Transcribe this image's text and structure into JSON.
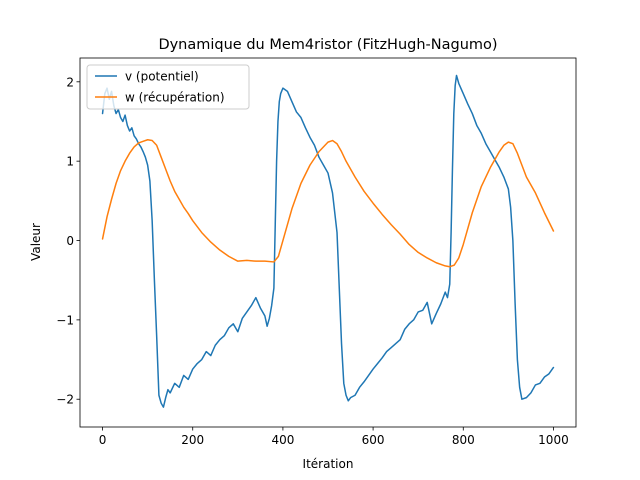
{
  "chart_data": {
    "type": "line",
    "title": "Dynamique du Mem4ristor (FitzHugh-Nagumo)",
    "xlabel": "Itération",
    "ylabel": "Valeur",
    "xlim": [
      -50,
      1050
    ],
    "ylim": [
      -2.35,
      2.3
    ],
    "x_ticks": [
      0,
      200,
      400,
      600,
      800,
      1000
    ],
    "y_ticks": [
      -2,
      -1,
      0,
      1,
      2
    ],
    "x_tick_labels": [
      "0",
      "200",
      "400",
      "600",
      "800",
      "1000"
    ],
    "y_tick_labels": [
      "−2",
      "−1",
      "0",
      "1",
      "2"
    ],
    "grid": false,
    "legend_position": "upper-left",
    "series": [
      {
        "name": "v (potentiel)",
        "color": "#1f77b4",
        "x": [
          0,
          5,
          10,
          15,
          20,
          25,
          30,
          35,
          40,
          45,
          50,
          55,
          60,
          65,
          70,
          75,
          80,
          85,
          90,
          95,
          100,
          105,
          110,
          115,
          120,
          125,
          130,
          135,
          140,
          145,
          150,
          160,
          170,
          180,
          190,
          200,
          210,
          220,
          230,
          240,
          250,
          260,
          270,
          280,
          290,
          300,
          310,
          320,
          330,
          340,
          350,
          360,
          365,
          370,
          375,
          380,
          383,
          386,
          389,
          392,
          395,
          400,
          410,
          420,
          430,
          440,
          450,
          460,
          470,
          480,
          490,
          500,
          510,
          520,
          525,
          530,
          535,
          540,
          545,
          550,
          560,
          570,
          580,
          590,
          600,
          610,
          620,
          630,
          640,
          650,
          660,
          670,
          680,
          690,
          700,
          710,
          720,
          730,
          740,
          750,
          760,
          765,
          770,
          773,
          776,
          779,
          782,
          785,
          790,
          800,
          810,
          820,
          830,
          840,
          850,
          860,
          870,
          880,
          890,
          900,
          905,
          910,
          915,
          920,
          925,
          930,
          940,
          950,
          960,
          970,
          980,
          990,
          1000
        ],
        "y": [
          1.6,
          1.85,
          1.92,
          1.78,
          1.88,
          1.7,
          1.6,
          1.65,
          1.55,
          1.5,
          1.58,
          1.45,
          1.38,
          1.42,
          1.32,
          1.28,
          1.22,
          1.18,
          1.12,
          1.05,
          0.95,
          0.75,
          0.25,
          -0.5,
          -1.2,
          -1.95,
          -2.05,
          -2.1,
          -1.98,
          -1.88,
          -1.92,
          -1.8,
          -1.85,
          -1.7,
          -1.75,
          -1.62,
          -1.55,
          -1.5,
          -1.4,
          -1.45,
          -1.32,
          -1.25,
          -1.2,
          -1.1,
          -1.05,
          -1.15,
          -0.98,
          -0.9,
          -0.82,
          -0.72,
          -0.85,
          -0.95,
          -1.08,
          -0.98,
          -0.82,
          -0.6,
          0.2,
          1.0,
          1.5,
          1.75,
          1.85,
          1.92,
          1.88,
          1.75,
          1.62,
          1.55,
          1.42,
          1.3,
          1.2,
          1.05,
          0.95,
          0.85,
          0.6,
          0.1,
          -0.6,
          -1.3,
          -1.8,
          -1.95,
          -2.02,
          -1.98,
          -1.95,
          -1.85,
          -1.78,
          -1.7,
          -1.62,
          -1.55,
          -1.48,
          -1.4,
          -1.35,
          -1.3,
          -1.25,
          -1.12,
          -1.05,
          -1.0,
          -0.9,
          -0.88,
          -0.78,
          -1.05,
          -0.92,
          -0.8,
          -0.65,
          -0.72,
          -0.55,
          0.1,
          0.9,
          1.6,
          1.95,
          2.08,
          1.98,
          1.85,
          1.72,
          1.6,
          1.45,
          1.35,
          1.22,
          1.12,
          1.02,
          0.92,
          0.8,
          0.65,
          0.42,
          0.0,
          -0.8,
          -1.5,
          -1.85,
          -2.0,
          -1.98,
          -1.92,
          -1.82,
          -1.8,
          -1.72,
          -1.68,
          -1.6
        ]
      },
      {
        "name": "w (récupération)",
        "color": "#ff7f0e",
        "x": [
          0,
          10,
          20,
          30,
          40,
          50,
          60,
          70,
          80,
          90,
          100,
          110,
          120,
          130,
          140,
          150,
          160,
          170,
          180,
          190,
          200,
          220,
          240,
          260,
          280,
          300,
          320,
          340,
          360,
          380,
          390,
          400,
          420,
          440,
          460,
          480,
          500,
          510,
          520,
          530,
          540,
          560,
          580,
          600,
          620,
          640,
          660,
          680,
          700,
          720,
          740,
          760,
          770,
          780,
          790,
          800,
          820,
          840,
          860,
          880,
          890,
          900,
          910,
          920,
          930,
          940,
          960,
          980,
          1000
        ],
        "y": [
          0.02,
          0.3,
          0.52,
          0.72,
          0.88,
          1.0,
          1.1,
          1.18,
          1.23,
          1.25,
          1.27,
          1.26,
          1.2,
          1.05,
          0.9,
          0.75,
          0.62,
          0.52,
          0.42,
          0.34,
          0.25,
          0.1,
          -0.02,
          -0.12,
          -0.2,
          -0.26,
          -0.25,
          -0.26,
          -0.26,
          -0.27,
          -0.2,
          0.0,
          0.4,
          0.72,
          0.95,
          1.12,
          1.24,
          1.26,
          1.22,
          1.12,
          1.0,
          0.8,
          0.62,
          0.47,
          0.33,
          0.2,
          0.08,
          -0.05,
          -0.15,
          -0.22,
          -0.28,
          -0.32,
          -0.33,
          -0.31,
          -0.22,
          -0.05,
          0.35,
          0.68,
          0.92,
          1.12,
          1.2,
          1.24,
          1.22,
          1.1,
          0.95,
          0.8,
          0.6,
          0.35,
          0.12
        ]
      }
    ]
  }
}
